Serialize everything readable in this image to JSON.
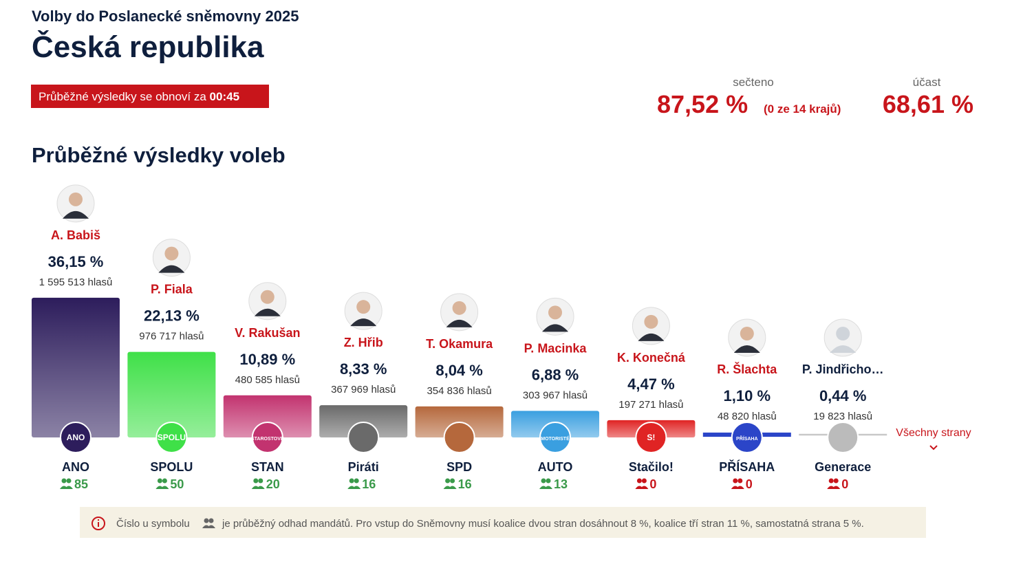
{
  "header": {
    "subtitle": "Volby do Poslanecké sněmovny 2025",
    "title": "Česká republika",
    "refresh_text": "Průběžné výsledky se obnoví za",
    "refresh_time": "00:45",
    "counted_label": "sečteno",
    "counted_value": "87,52 %",
    "counted_note": "(0 ze 14 krajů)",
    "turnout_label": "účast",
    "turnout_value": "68,61 %"
  },
  "section_title": "Průběžné výsledky voleb",
  "chart_data": {
    "type": "bar",
    "categories": [
      "ANO",
      "SPOLU",
      "STAN",
      "Piráti",
      "SPD",
      "AUTO",
      "Stačilo!",
      "PŘÍSAHA",
      "Generace"
    ],
    "leaders": [
      "A. Babiš",
      "P. Fiala",
      "V. Rakušan",
      "Z. Hřib",
      "T. Okamura",
      "P. Macinka",
      "K. Konečná",
      "R. Šlachta",
      "P. Jindřicho…"
    ],
    "values": [
      36.15,
      22.13,
      10.89,
      8.33,
      8.04,
      6.88,
      4.47,
      1.1,
      0.44
    ],
    "value_labels": [
      "36,15 %",
      "22,13 %",
      "10,89 %",
      "8,33 %",
      "8,04 %",
      "6,88 %",
      "4,47 %",
      "1,10 %",
      "0,44 %"
    ],
    "votes": [
      "1 595 513 hlasů",
      "976 717 hlasů",
      "480 585 hlasů",
      "367 969 hlasů",
      "354 836 hlasů",
      "303 967 hlasů",
      "197 271 hlasů",
      "48 820 hlasů",
      "19 823 hlasů"
    ],
    "seats": [
      85,
      50,
      20,
      16,
      16,
      13,
      0,
      0,
      0
    ],
    "logos": [
      "ANO",
      "SPOLU",
      "STAROSTOVÉ",
      null,
      null,
      "MOTORISTÉ",
      "S!",
      "PŘÍSAHA",
      null
    ],
    "colors": [
      "#2d1d5c",
      "#3fe048",
      "#c2336f",
      "#6a6a6a",
      "#b5683c",
      "#3a9fe0",
      "#e02424",
      "#2b45c8",
      "#c8c8c8"
    ]
  },
  "all_parties": "Všechny strany",
  "footer": {
    "before_icon": "Číslo u symbolu",
    "after_icon": "je průběžný odhad mandátů. Pro vstup do Sněmovny musí koalice dvou stran dosáhnout 8 %, koalice tří stran 11 %, samostatná strana 5 %."
  }
}
